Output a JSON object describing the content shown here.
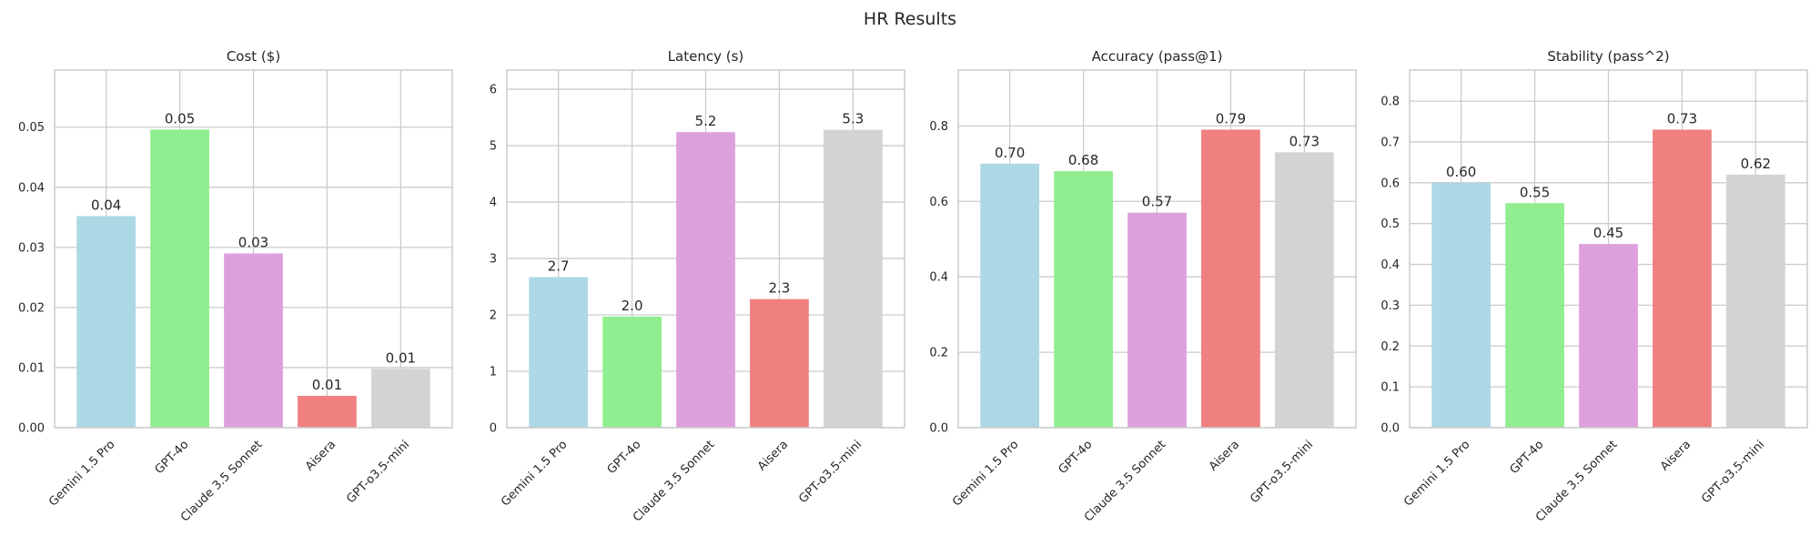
{
  "title": "HR Results",
  "colors": [
    "#add8e6",
    "#90ee90",
    "#dda0dd",
    "#f08080",
    "#d3d3d3"
  ],
  "chart_data": [
    {
      "type": "bar",
      "title": "Cost ($)",
      "categories": [
        "Gemini 1.5 Pro",
        "GPT-4o",
        "Claude 3.5 Sonnet",
        "Aisera",
        "GPT-o3.5-mini"
      ],
      "values": [
        0.0352,
        0.0496,
        0.029,
        0.0053,
        0.0098
      ],
      "value_labels": [
        "0.04",
        "0.05",
        "0.03",
        "0.01",
        "0.01"
      ],
      "yticks": [
        "0.00",
        "0.01",
        "0.02",
        "0.03",
        "0.04",
        "0.05"
      ],
      "ytick_values": [
        0,
        0.01,
        0.02,
        0.03,
        0.04,
        0.05
      ],
      "ylim": [
        0,
        0.0595
      ],
      "grid": true
    },
    {
      "type": "bar",
      "title": "Latency (s)",
      "categories": [
        "Gemini 1.5 Pro",
        "GPT-4o",
        "Claude 3.5 Sonnet",
        "Aisera",
        "GPT-o3.5-mini"
      ],
      "values": [
        2.67,
        1.97,
        5.24,
        2.28,
        5.28
      ],
      "value_labels": [
        "2.7",
        "2.0",
        "5.2",
        "2.3",
        "5.3"
      ],
      "yticks": [
        "0",
        "1",
        "2",
        "3",
        "4",
        "5",
        "6"
      ],
      "ytick_values": [
        0,
        1,
        2,
        3,
        4,
        5,
        6
      ],
      "ylim": [
        0,
        6.34
      ],
      "grid": true
    },
    {
      "type": "bar",
      "title": "Accuracy (pass@1)",
      "categories": [
        "Gemini 1.5 Pro",
        "GPT-4o",
        "Claude 3.5 Sonnet",
        "Aisera",
        "GPT-o3.5-mini"
      ],
      "values": [
        0.7,
        0.68,
        0.57,
        0.79,
        0.73
      ],
      "value_labels": [
        "0.70",
        "0.68",
        "0.57",
        "0.79",
        "0.73"
      ],
      "yticks": [
        "0.0",
        "0.2",
        "0.4",
        "0.6",
        "0.8"
      ],
      "ytick_values": [
        0,
        0.2,
        0.4,
        0.6,
        0.8
      ],
      "ylim": [
        0,
        0.948
      ],
      "grid": true
    },
    {
      "type": "bar",
      "title": "Stability (pass^2)",
      "categories": [
        "Gemini 1.5 Pro",
        "GPT-4o",
        "Claude 3.5 Sonnet",
        "Aisera",
        "GPT-o3.5-mini"
      ],
      "values": [
        0.6,
        0.55,
        0.45,
        0.73,
        0.62
      ],
      "value_labels": [
        "0.60",
        "0.55",
        "0.45",
        "0.73",
        "0.62"
      ],
      "yticks": [
        "0.0",
        "0.1",
        "0.2",
        "0.3",
        "0.4",
        "0.5",
        "0.6",
        "0.7",
        "0.8"
      ],
      "ytick_values": [
        0,
        0.1,
        0.2,
        0.3,
        0.4,
        0.5,
        0.6,
        0.7,
        0.8
      ],
      "ylim": [
        0,
        0.876
      ],
      "grid": true
    }
  ]
}
